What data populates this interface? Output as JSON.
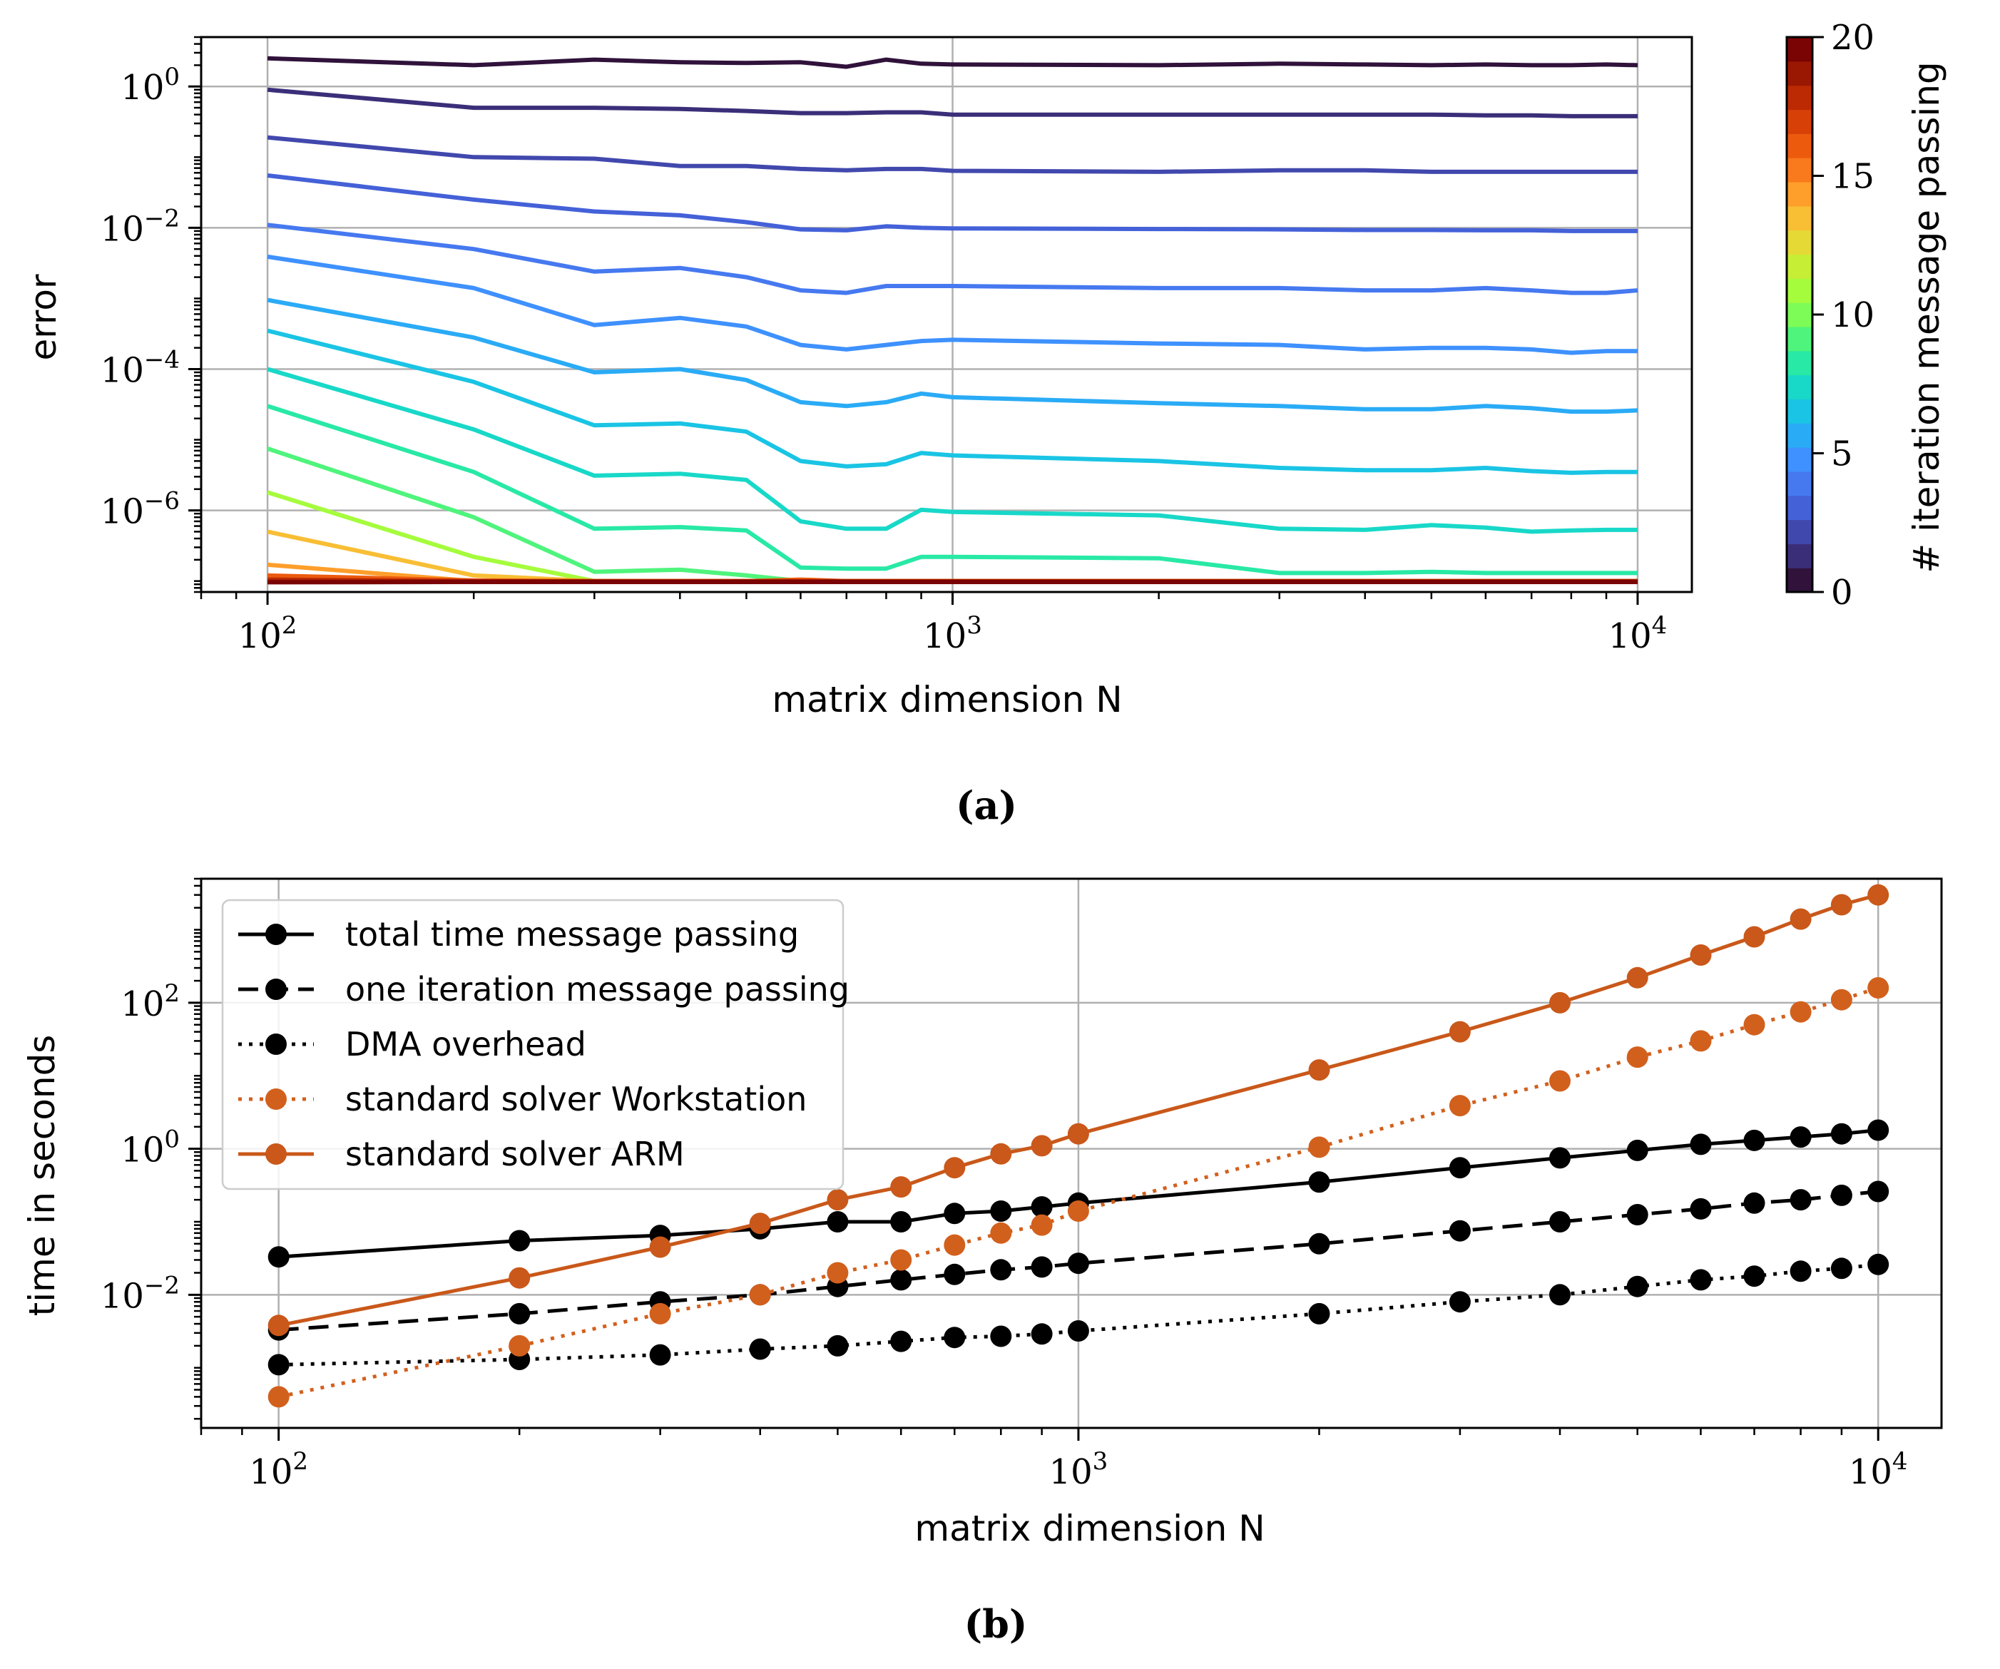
{
  "chart_data": [
    {
      "type": "line",
      "panel_caption": "(a)",
      "xlabel": "matrix dimension N",
      "ylabel": "error",
      "xscale": "log",
      "yscale": "log",
      "xlim": [
        80,
        12000
      ],
      "ylim": [
        7e-08,
        5
      ],
      "xticks": [
        {
          "base": "10",
          "exp": "2"
        },
        {
          "base": "10",
          "exp": "3"
        },
        {
          "base": "10",
          "exp": "4"
        }
      ],
      "yticks": [
        {
          "base": "10",
          "exp": "0"
        },
        {
          "base": "10",
          "exp": "−2"
        },
        {
          "base": "10",
          "exp": "−4"
        },
        {
          "base": "10",
          "exp": "−6"
        }
      ],
      "colorbar": {
        "label": "# iteration message passing",
        "range": [
          0,
          20
        ],
        "ticks": [
          "0",
          "5",
          "10",
          "15",
          "20"
        ],
        "colors": [
          "#30123b",
          "#3b2e79",
          "#4148ad",
          "#4461d8",
          "#4679f0",
          "#3e91fe",
          "#2aabf6",
          "#1ac4e4",
          "#18d8c8",
          "#28e9a5",
          "#4ff47c",
          "#7dfc57",
          "#a5fc3c",
          "#c6ee34",
          "#e5d936",
          "#f8be34",
          "#fe9e2b",
          "#f9791d",
          "#ec5a0e",
          "#d74007",
          "#bc2a03",
          "#9a1702",
          "#7a0403"
        ]
      },
      "x": [
        100,
        200,
        300,
        400,
        500,
        600,
        700,
        800,
        900,
        1000,
        2000,
        3000,
        4000,
        5000,
        6000,
        7000,
        8000,
        9000,
        10000
      ],
      "series": [
        {
          "iteration": 0,
          "color": "#30123b",
          "values": [
            2.5,
            2.0,
            2.4,
            2.2,
            2.15,
            2.2,
            1.9,
            2.4,
            2.1,
            2.05,
            2.0,
            2.1,
            2.05,
            2.0,
            2.05,
            2.0,
            2.0,
            2.05,
            2.0
          ]
        },
        {
          "iteration": 1,
          "color": "#3b2e79",
          "values": [
            0.9,
            0.5,
            0.5,
            0.48,
            0.45,
            0.42,
            0.42,
            0.43,
            0.43,
            0.4,
            0.4,
            0.4,
            0.4,
            0.4,
            0.39,
            0.39,
            0.38,
            0.38,
            0.38
          ]
        },
        {
          "iteration": 2,
          "color": "#4148ad",
          "values": [
            0.19,
            0.1,
            0.095,
            0.075,
            0.075,
            0.068,
            0.065,
            0.068,
            0.068,
            0.064,
            0.062,
            0.065,
            0.065,
            0.062,
            0.062,
            0.062,
            0.062,
            0.062,
            0.062
          ]
        },
        {
          "iteration": 3,
          "color": "#4461d8",
          "values": [
            0.055,
            0.025,
            0.017,
            0.015,
            0.012,
            0.0095,
            0.0092,
            0.0105,
            0.01,
            0.0098,
            0.0096,
            0.0095,
            0.0093,
            0.0093,
            0.0092,
            0.0092,
            0.009,
            0.009,
            0.009
          ]
        },
        {
          "iteration": 4,
          "color": "#4679f0",
          "values": [
            0.011,
            0.005,
            0.0024,
            0.0027,
            0.002,
            0.0013,
            0.0012,
            0.0015,
            0.0015,
            0.0015,
            0.0014,
            0.0014,
            0.0013,
            0.0013,
            0.0014,
            0.0013,
            0.0012,
            0.0012,
            0.0013
          ]
        },
        {
          "iteration": 5,
          "color": "#3e91fe",
          "values": [
            0.0039,
            0.0014,
            0.00042,
            0.00053,
            0.0004,
            0.00022,
            0.00019,
            0.00022,
            0.00025,
            0.00026,
            0.00023,
            0.00022,
            0.00019,
            0.0002,
            0.0002,
            0.00019,
            0.00017,
            0.00018,
            0.00018
          ]
        },
        {
          "iteration": 6,
          "color": "#2aabf6",
          "values": [
            0.00095,
            0.00028,
            9e-05,
            0.0001,
            7e-05,
            3.4e-05,
            3e-05,
            3.4e-05,
            4.5e-05,
            4e-05,
            3.3e-05,
            3e-05,
            2.7e-05,
            2.7e-05,
            3e-05,
            2.8e-05,
            2.5e-05,
            2.5e-05,
            2.6e-05
          ]
        },
        {
          "iteration": 7,
          "color": "#1ac4e4",
          "values": [
            0.00035,
            6.6e-05,
            1.6e-05,
            1.7e-05,
            1.3e-05,
            5e-06,
            4.2e-06,
            4.5e-06,
            6.5e-06,
            6e-06,
            5e-06,
            4e-06,
            3.7e-06,
            3.7e-06,
            4e-06,
            3.6e-06,
            3.4e-06,
            3.5e-06,
            3.5e-06
          ]
        },
        {
          "iteration": 8,
          "color": "#18d8c8",
          "values": [
            0.0001,
            1.4e-05,
            3.1e-06,
            3.3e-06,
            2.7e-06,
            7e-07,
            5.5e-07,
            5.5e-07,
            1.02e-06,
            9.5e-07,
            8.5e-07,
            5.5e-07,
            5.3e-07,
            6.2e-07,
            5.7e-07,
            5e-07,
            5.2e-07,
            5.3e-07,
            5.3e-07
          ]
        },
        {
          "iteration": 9,
          "color": "#28e9a5",
          "values": [
            3e-05,
            3.5e-06,
            5.5e-07,
            5.8e-07,
            5.2e-07,
            1.55e-07,
            1.5e-07,
            1.5e-07,
            2.2e-07,
            2.2e-07,
            2.1e-07,
            1.3e-07,
            1.3e-07,
            1.35e-07,
            1.3e-07,
            1.3e-07,
            1.3e-07,
            1.3e-07,
            1.3e-07
          ]
        },
        {
          "iteration": 10,
          "color": "#4ff47c",
          "values": [
            7.5e-06,
            8e-07,
            1.35e-07,
            1.45e-07,
            1.2e-07,
            1e-07,
            1e-07,
            1e-07,
            1e-07,
            1e-07,
            1e-07,
            1e-07,
            1e-07,
            1e-07,
            1e-07,
            1e-07,
            1e-07,
            1e-07,
            1e-07
          ]
        },
        {
          "iteration": 11,
          "color": "#a5fc3c",
          "values": [
            1.8e-06,
            2.2e-07,
            1e-07,
            1e-07,
            1e-07,
            1e-07,
            1e-07,
            1e-07,
            1e-07,
            1e-07,
            1e-07,
            1e-07,
            1e-07,
            1e-07,
            1e-07,
            1e-07,
            1e-07,
            1e-07,
            1e-07
          ]
        },
        {
          "iteration": 12,
          "color": "#f8be34",
          "values": [
            5e-07,
            1.2e-07,
            1e-07,
            1e-07,
            1e-07,
            1e-07,
            1e-07,
            1e-07,
            1e-07,
            1e-07,
            1e-07,
            1e-07,
            1e-07,
            1e-07,
            1e-07,
            1e-07,
            1e-07,
            1e-07,
            1e-07
          ]
        },
        {
          "iteration": 13,
          "color": "#fe9e2b",
          "values": [
            1.7e-07,
            1e-07,
            1e-07,
            1e-07,
            1e-07,
            1e-07,
            1e-07,
            1e-07,
            1e-07,
            1e-07,
            1e-07,
            1e-07,
            1e-07,
            1e-07,
            1e-07,
            1e-07,
            1e-07,
            1e-07,
            1e-07
          ]
        },
        {
          "iteration": 14,
          "color": "#ec5a0e",
          "values": [
            1.2e-07,
            1.02e-07,
            1e-07,
            1e-07,
            1e-07,
            1.05e-07,
            1e-07,
            1e-07,
            1e-07,
            1e-07,
            1e-07,
            1e-07,
            1e-07,
            1e-07,
            1e-07,
            1e-07,
            1e-07,
            1e-07,
            1e-07
          ]
        },
        {
          "iteration": 16,
          "color": "#bc2a03",
          "values": [
            1.05e-07,
            1e-07,
            1e-07,
            1e-07,
            1e-07,
            1e-07,
            1e-07,
            1e-07,
            1e-07,
            1e-07,
            1e-07,
            1e-07,
            1e-07,
            1e-07,
            1e-07,
            1e-07,
            1e-07,
            1e-07,
            1e-07
          ]
        },
        {
          "iteration": 18,
          "color": "#9a1702",
          "values": [
            9.8e-08,
            9.85e-08,
            9.85e-08,
            9.85e-08,
            9.85e-08,
            9.85e-08,
            9.85e-08,
            9.85e-08,
            9.85e-08,
            9.85e-08,
            9.85e-08,
            9.85e-08,
            9.85e-08,
            9.85e-08,
            9.85e-08,
            9.85e-08,
            9.85e-08,
            9.85e-08,
            9.85e-08
          ]
        },
        {
          "iteration": 20,
          "color": "#7a0403",
          "values": [
            9.6e-08,
            9.7e-08,
            9.7e-08,
            9.7e-08,
            9.7e-08,
            9.7e-08,
            9.7e-08,
            9.7e-08,
            9.7e-08,
            9.7e-08,
            9.7e-08,
            9.7e-08,
            9.7e-08,
            9.7e-08,
            9.7e-08,
            9.7e-08,
            9.7e-08,
            9.7e-08,
            9.7e-08
          ]
        }
      ]
    },
    {
      "type": "line",
      "panel_caption": "(b)",
      "xlabel": "matrix dimension N",
      "ylabel": "time in seconds",
      "xscale": "log",
      "yscale": "log",
      "xlim": [
        80,
        12000
      ],
      "ylim": [
        0.00015,
        5000
      ],
      "xticks": [
        {
          "base": "10",
          "exp": "2"
        },
        {
          "base": "10",
          "exp": "3"
        },
        {
          "base": "10",
          "exp": "4"
        }
      ],
      "yticks": [
        {
          "base": "10",
          "exp": "2"
        },
        {
          "base": "10",
          "exp": "0"
        },
        {
          "base": "10",
          "exp": "−2"
        }
      ],
      "legend_position": "top-left",
      "x": [
        100,
        200,
        300,
        400,
        500,
        600,
        700,
        800,
        900,
        1000,
        2000,
        3000,
        4000,
        5000,
        6000,
        7000,
        8000,
        9000,
        10000
      ],
      "series": [
        {
          "name": "total time message passing",
          "color": "#000000",
          "linestyle": "solid",
          "values": [
            0.033,
            0.055,
            0.065,
            0.08,
            0.1,
            0.1,
            0.13,
            0.14,
            0.16,
            0.18,
            0.35,
            0.55,
            0.75,
            0.95,
            1.15,
            1.3,
            1.45,
            1.6,
            1.8
          ]
        },
        {
          "name": "one iteration message passing",
          "color": "#000000",
          "linestyle": "dashed",
          "values": [
            0.0033,
            0.0055,
            0.008,
            0.01,
            0.013,
            0.016,
            0.019,
            0.022,
            0.024,
            0.027,
            0.05,
            0.075,
            0.1,
            0.125,
            0.15,
            0.18,
            0.2,
            0.23,
            0.26
          ]
        },
        {
          "name": "DMA overhead",
          "color": "#000000",
          "linestyle": "dotted",
          "values": [
            0.0011,
            0.0013,
            0.0015,
            0.0018,
            0.002,
            0.0023,
            0.0026,
            0.0027,
            0.0029,
            0.0032,
            0.0055,
            0.008,
            0.01,
            0.013,
            0.016,
            0.018,
            0.021,
            0.023,
            0.026
          ]
        },
        {
          "name": "standard solver Workstation",
          "color": "#d2601d",
          "linestyle": "dotted",
          "values": [
            0.0004,
            0.002,
            0.0055,
            0.01,
            0.02,
            0.03,
            0.048,
            0.07,
            0.09,
            0.14,
            1.05,
            3.9,
            8.5,
            18,
            30,
            50,
            75,
            110,
            160
          ]
        },
        {
          "name": "standard solver ARM",
          "color": "#c9581a",
          "linestyle": "solid",
          "values": [
            0.0038,
            0.017,
            0.045,
            0.095,
            0.2,
            0.3,
            0.55,
            0.85,
            1.1,
            1.6,
            12,
            40,
            100,
            220,
            450,
            800,
            1400,
            2200,
            3000
          ]
        }
      ]
    }
  ]
}
